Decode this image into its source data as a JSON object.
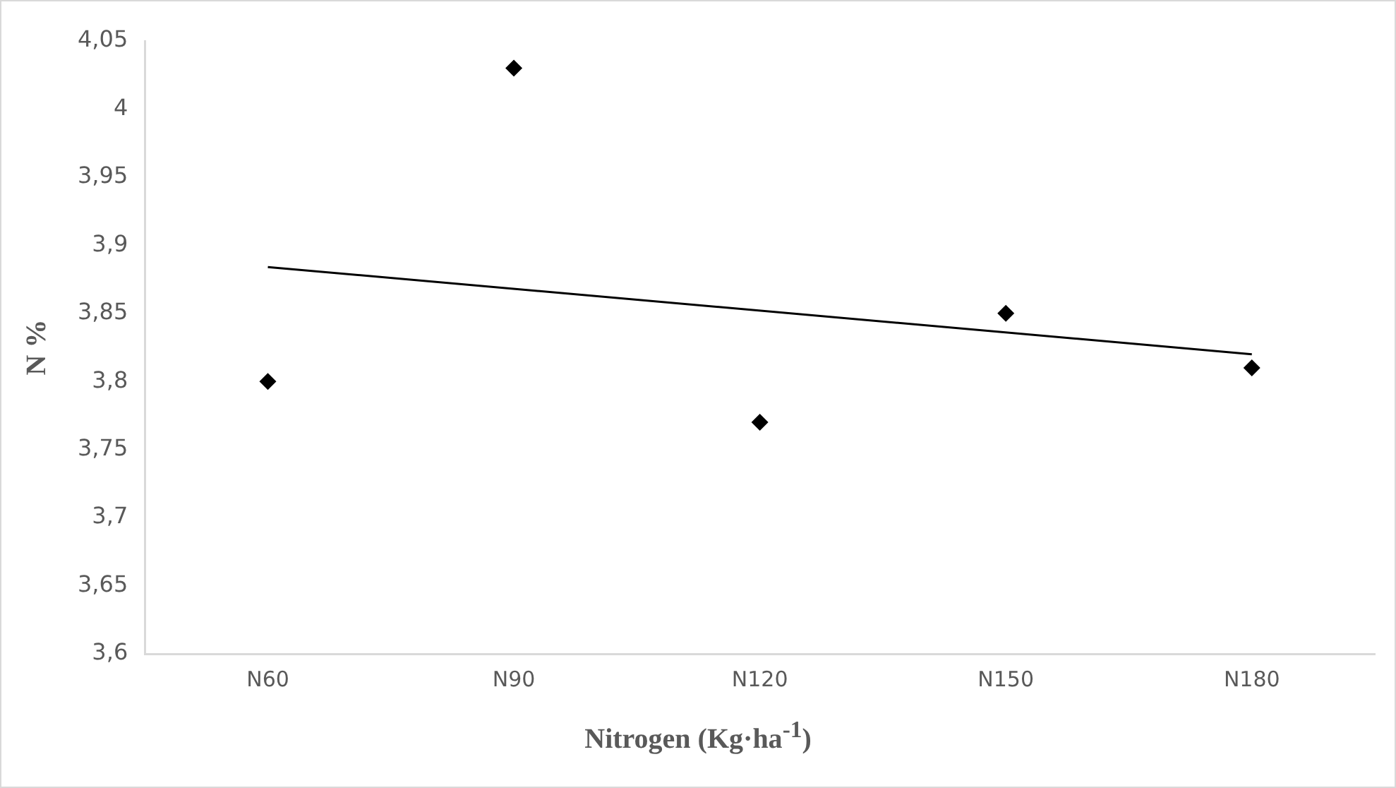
{
  "chart_data": {
    "type": "scatter",
    "xlabel": "Nitrogen (Kg·ha$^{-1}$)",
    "ylabel": "N %",
    "categories": [
      "N60",
      "N90",
      "N120",
      "N150",
      "N180"
    ],
    "series": [
      {
        "color": "#000000",
        "marker": "diamond",
        "values": [
          3.8,
          4.03,
          3.77,
          3.85,
          3.81
        ]
      },
      {
        "type": "line",
        "color": "#000000",
        "marker": "none",
        "line_style": "solid",
        "x": [
          "N60",
          "N180"
        ],
        "values": [
          3.884,
          3.82
        ]
      }
    ],
    "ylim": [
      3.6,
      4.05
    ],
    "yticks": [
      {
        "value": 3.6,
        "label": "3,6"
      },
      {
        "value": 3.65,
        "label": "3,65"
      },
      {
        "value": 3.7,
        "label": "3,7"
      },
      {
        "value": 3.75,
        "label": "3,75"
      },
      {
        "value": 3.8,
        "label": "3,8"
      },
      {
        "value": 3.85,
        "label": "3,85"
      },
      {
        "value": 3.9,
        "label": "3,9"
      },
      {
        "value": 3.95,
        "label": "3,95"
      },
      {
        "value": 4,
        "label": "4"
      },
      {
        "value": 4.05,
        "label": "4,05"
      }
    ],
    "grid": false,
    "legend": false
  }
}
